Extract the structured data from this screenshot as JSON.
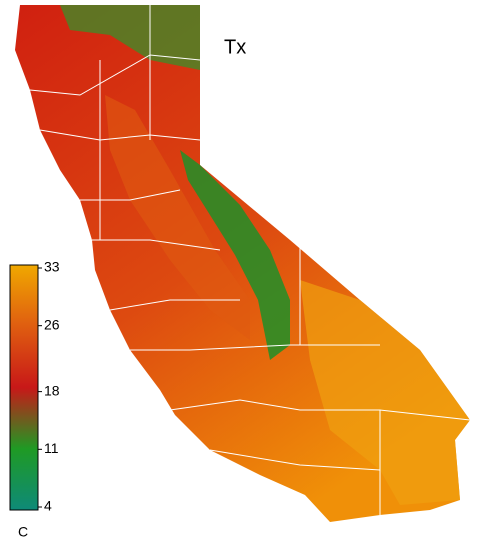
{
  "title": "Tx",
  "colorbar": {
    "range": [
      4,
      33
    ],
    "ticks": [
      33,
      26,
      18,
      11,
      4
    ],
    "unit": "C"
  }
}
